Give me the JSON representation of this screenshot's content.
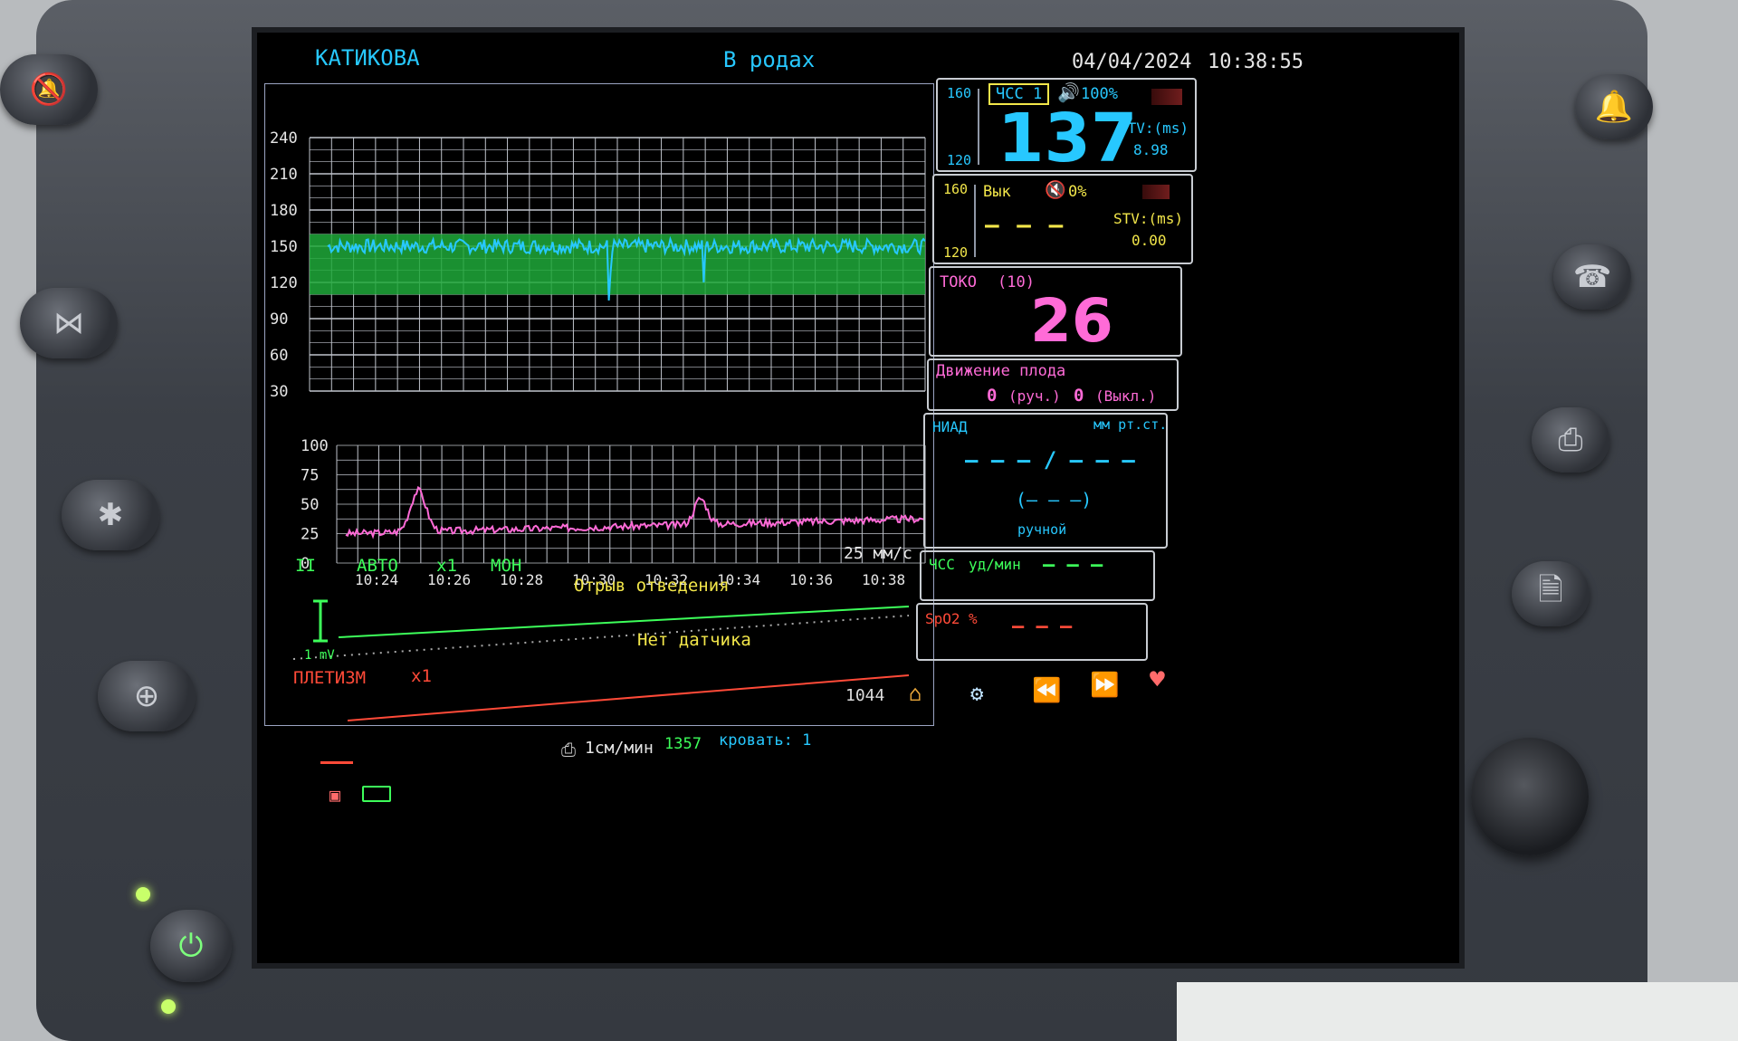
{
  "header": {
    "patient": "КАТИКОВА",
    "status": "В родах",
    "date": "04/04/2024",
    "time": "10:38:55"
  },
  "ctg": {
    "fhr_axis": [
      "240",
      "210",
      "180",
      "150",
      "120",
      "90",
      "60",
      "30"
    ],
    "toco_axis": [
      "100",
      "75",
      "50",
      "25",
      "0"
    ],
    "time_labels": [
      "10:24",
      "10:26",
      "10:28",
      "10:30",
      "10:32",
      "10:34",
      "10:36",
      "10:38"
    ],
    "speed": "25 мм/с"
  },
  "ecg": {
    "lead": "II",
    "mode": "АВТО",
    "gain": "x1",
    "filter": "МОН",
    "message": "Отрыв отведения",
    "scale": "1 mV",
    "pleth_label": "ПЛЕТИЗМ",
    "pleth_gain": "x1",
    "pleth_message": "Нет датчика"
  },
  "panels": {
    "fhr1": {
      "upper": "160",
      "lower": "120",
      "label": "ЧСС 1",
      "volume": "100%",
      "value": "137",
      "stv_label": "STV:(ms)",
      "stv_value": "8.98"
    },
    "fhr2": {
      "upper": "160",
      "lower": "120",
      "label": "Вык",
      "volume": "0%",
      "value": "– – –",
      "stv_label": "STV:(ms)",
      "stv_value": "0.00"
    },
    "toco": {
      "label": "ТОКО",
      "zero": "(10)",
      "value": "26"
    },
    "movement": {
      "label": "Движение плода",
      "manual_count": "0",
      "manual_label": "(руч.)",
      "auto_count": "0",
      "auto_label": "(Выкл.)"
    },
    "nibp": {
      "label": "НИАД",
      "unit": "мм рт.ст.",
      "value": "– – – / – – –",
      "mean": "(– – –)",
      "mode": "ручной"
    },
    "hr": {
      "label": "ЧСС",
      "unit": "уд/мин",
      "value": "– – –"
    },
    "spo2": {
      "label": "SpO2",
      "unit": "%",
      "value": "– – –"
    }
  },
  "footer": {
    "print_speed": "1см/мин",
    "record_number": "1357",
    "bed": "кровать: 1",
    "counter": "1044"
  },
  "icons": [
    "alarm-off-icon",
    "freeze-icon",
    "marker-icon",
    "zero-icon",
    "power-icon",
    "home-icon",
    "settings-icon",
    "rewind-icon",
    "fast-forward-icon",
    "heart-icon",
    "print-icon",
    "record-icon",
    "silence-icon",
    "probe-icon",
    "document-icon"
  ],
  "colors": {
    "fhr": "#27c8ff",
    "fhr_band": "#1fa93a",
    "toco": "#ff6bd7",
    "ecg": "#3dff5a",
    "pleth": "#ff4a38"
  }
}
